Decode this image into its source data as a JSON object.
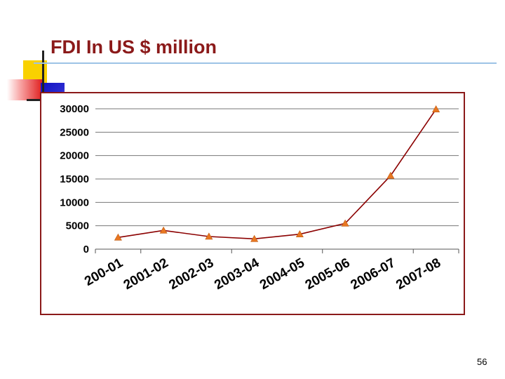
{
  "slide": {
    "title": "FDI In US $ million",
    "page_number": "56"
  },
  "colors": {
    "title": "#8B1A1A",
    "line": "#8B0000",
    "marker": "#E87722",
    "frame": "#8B1A1A",
    "rule": "#9DC3E6"
  },
  "chart_data": {
    "type": "line",
    "title": "FDI In US $ million",
    "categories": [
      "200-01",
      "2001-02",
      "2002-03",
      "2003-04",
      "2004-05",
      "2005-06",
      "2006-07",
      "2007-08"
    ],
    "series": [
      {
        "values": [
          2500,
          4000,
          2700,
          2200,
          3200,
          5500,
          15700,
          29900
        ]
      }
    ],
    "y_ticks": [
      0,
      5000,
      10000,
      15000,
      20000,
      25000,
      30000
    ],
    "ylim": [
      0,
      30000
    ],
    "grid": "horizontal",
    "legend": "none",
    "marker": "triangle"
  }
}
